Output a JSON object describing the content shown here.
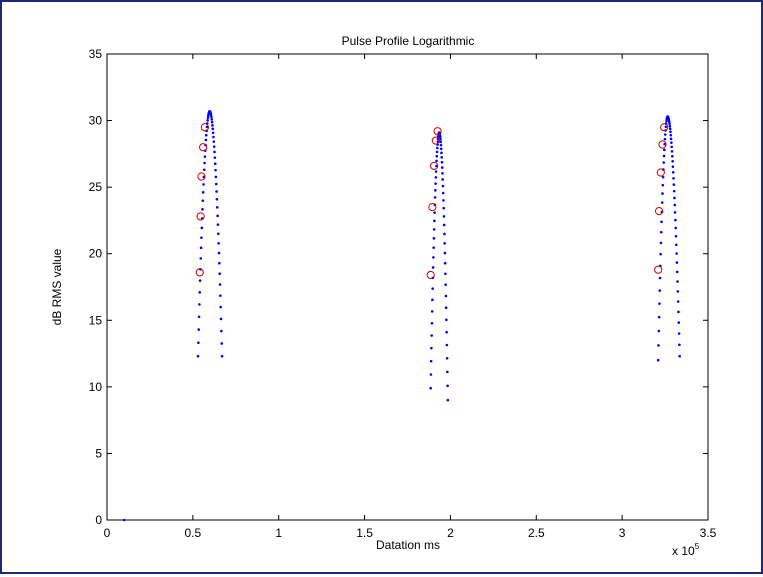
{
  "chart_data": {
    "type": "scatter",
    "title": "Pulse Profile Logarithmic",
    "xlabel": "Datation ms",
    "ylabel": "dB RMS value",
    "x_exponent_label": "x 10",
    "x_exponent_power": "5",
    "xlim": [
      0,
      3.5
    ],
    "ylim": [
      0,
      35
    ],
    "x_ticks": [
      0,
      0.5,
      1,
      1.5,
      2,
      2.5,
      3,
      3.5
    ],
    "x_tick_labels": [
      "0",
      "0.5",
      "1",
      "1.5",
      "2",
      "2.5",
      "3",
      "3.5"
    ],
    "y_ticks": [
      0,
      5,
      10,
      15,
      20,
      25,
      30,
      35
    ],
    "y_tick_labels": [
      "0",
      "5",
      "10",
      "15",
      "20",
      "25",
      "30",
      "35"
    ],
    "grid": false,
    "colors": {
      "series_points": "#0000ff",
      "markers": "#cc0000"
    },
    "pulses": [
      {
        "start": 0.53,
        "peak_x": 0.598,
        "end": 0.67,
        "peak_y": 30.7,
        "start_y": 12.3,
        "end_y": 12.3
      },
      {
        "start": 1.885,
        "peak_x": 1.935,
        "end": 1.985,
        "peak_y": 29.1,
        "start_y": 9.9,
        "end_y": 9.0
      },
      {
        "start": 3.21,
        "peak_x": 3.265,
        "end": 3.335,
        "peak_y": 30.3,
        "start_y": 12.0,
        "end_y": 12.3
      }
    ],
    "isolated_points": [
      {
        "x": 0.1,
        "y": 0.0
      }
    ],
    "circle_markers": [
      {
        "x": 0.54,
        "y": 18.6
      },
      {
        "x": 0.545,
        "y": 22.8
      },
      {
        "x": 0.55,
        "y": 25.8
      },
      {
        "x": 0.56,
        "y": 28.0
      },
      {
        "x": 0.57,
        "y": 29.5
      },
      {
        "x": 1.885,
        "y": 18.4
      },
      {
        "x": 1.895,
        "y": 23.5
      },
      {
        "x": 1.905,
        "y": 26.6
      },
      {
        "x": 1.915,
        "y": 28.5
      },
      {
        "x": 1.925,
        "y": 29.2
      },
      {
        "x": 3.21,
        "y": 18.8
      },
      {
        "x": 3.215,
        "y": 23.2
      },
      {
        "x": 3.225,
        "y": 26.1
      },
      {
        "x": 3.235,
        "y": 28.2
      },
      {
        "x": 3.245,
        "y": 29.5
      }
    ]
  }
}
